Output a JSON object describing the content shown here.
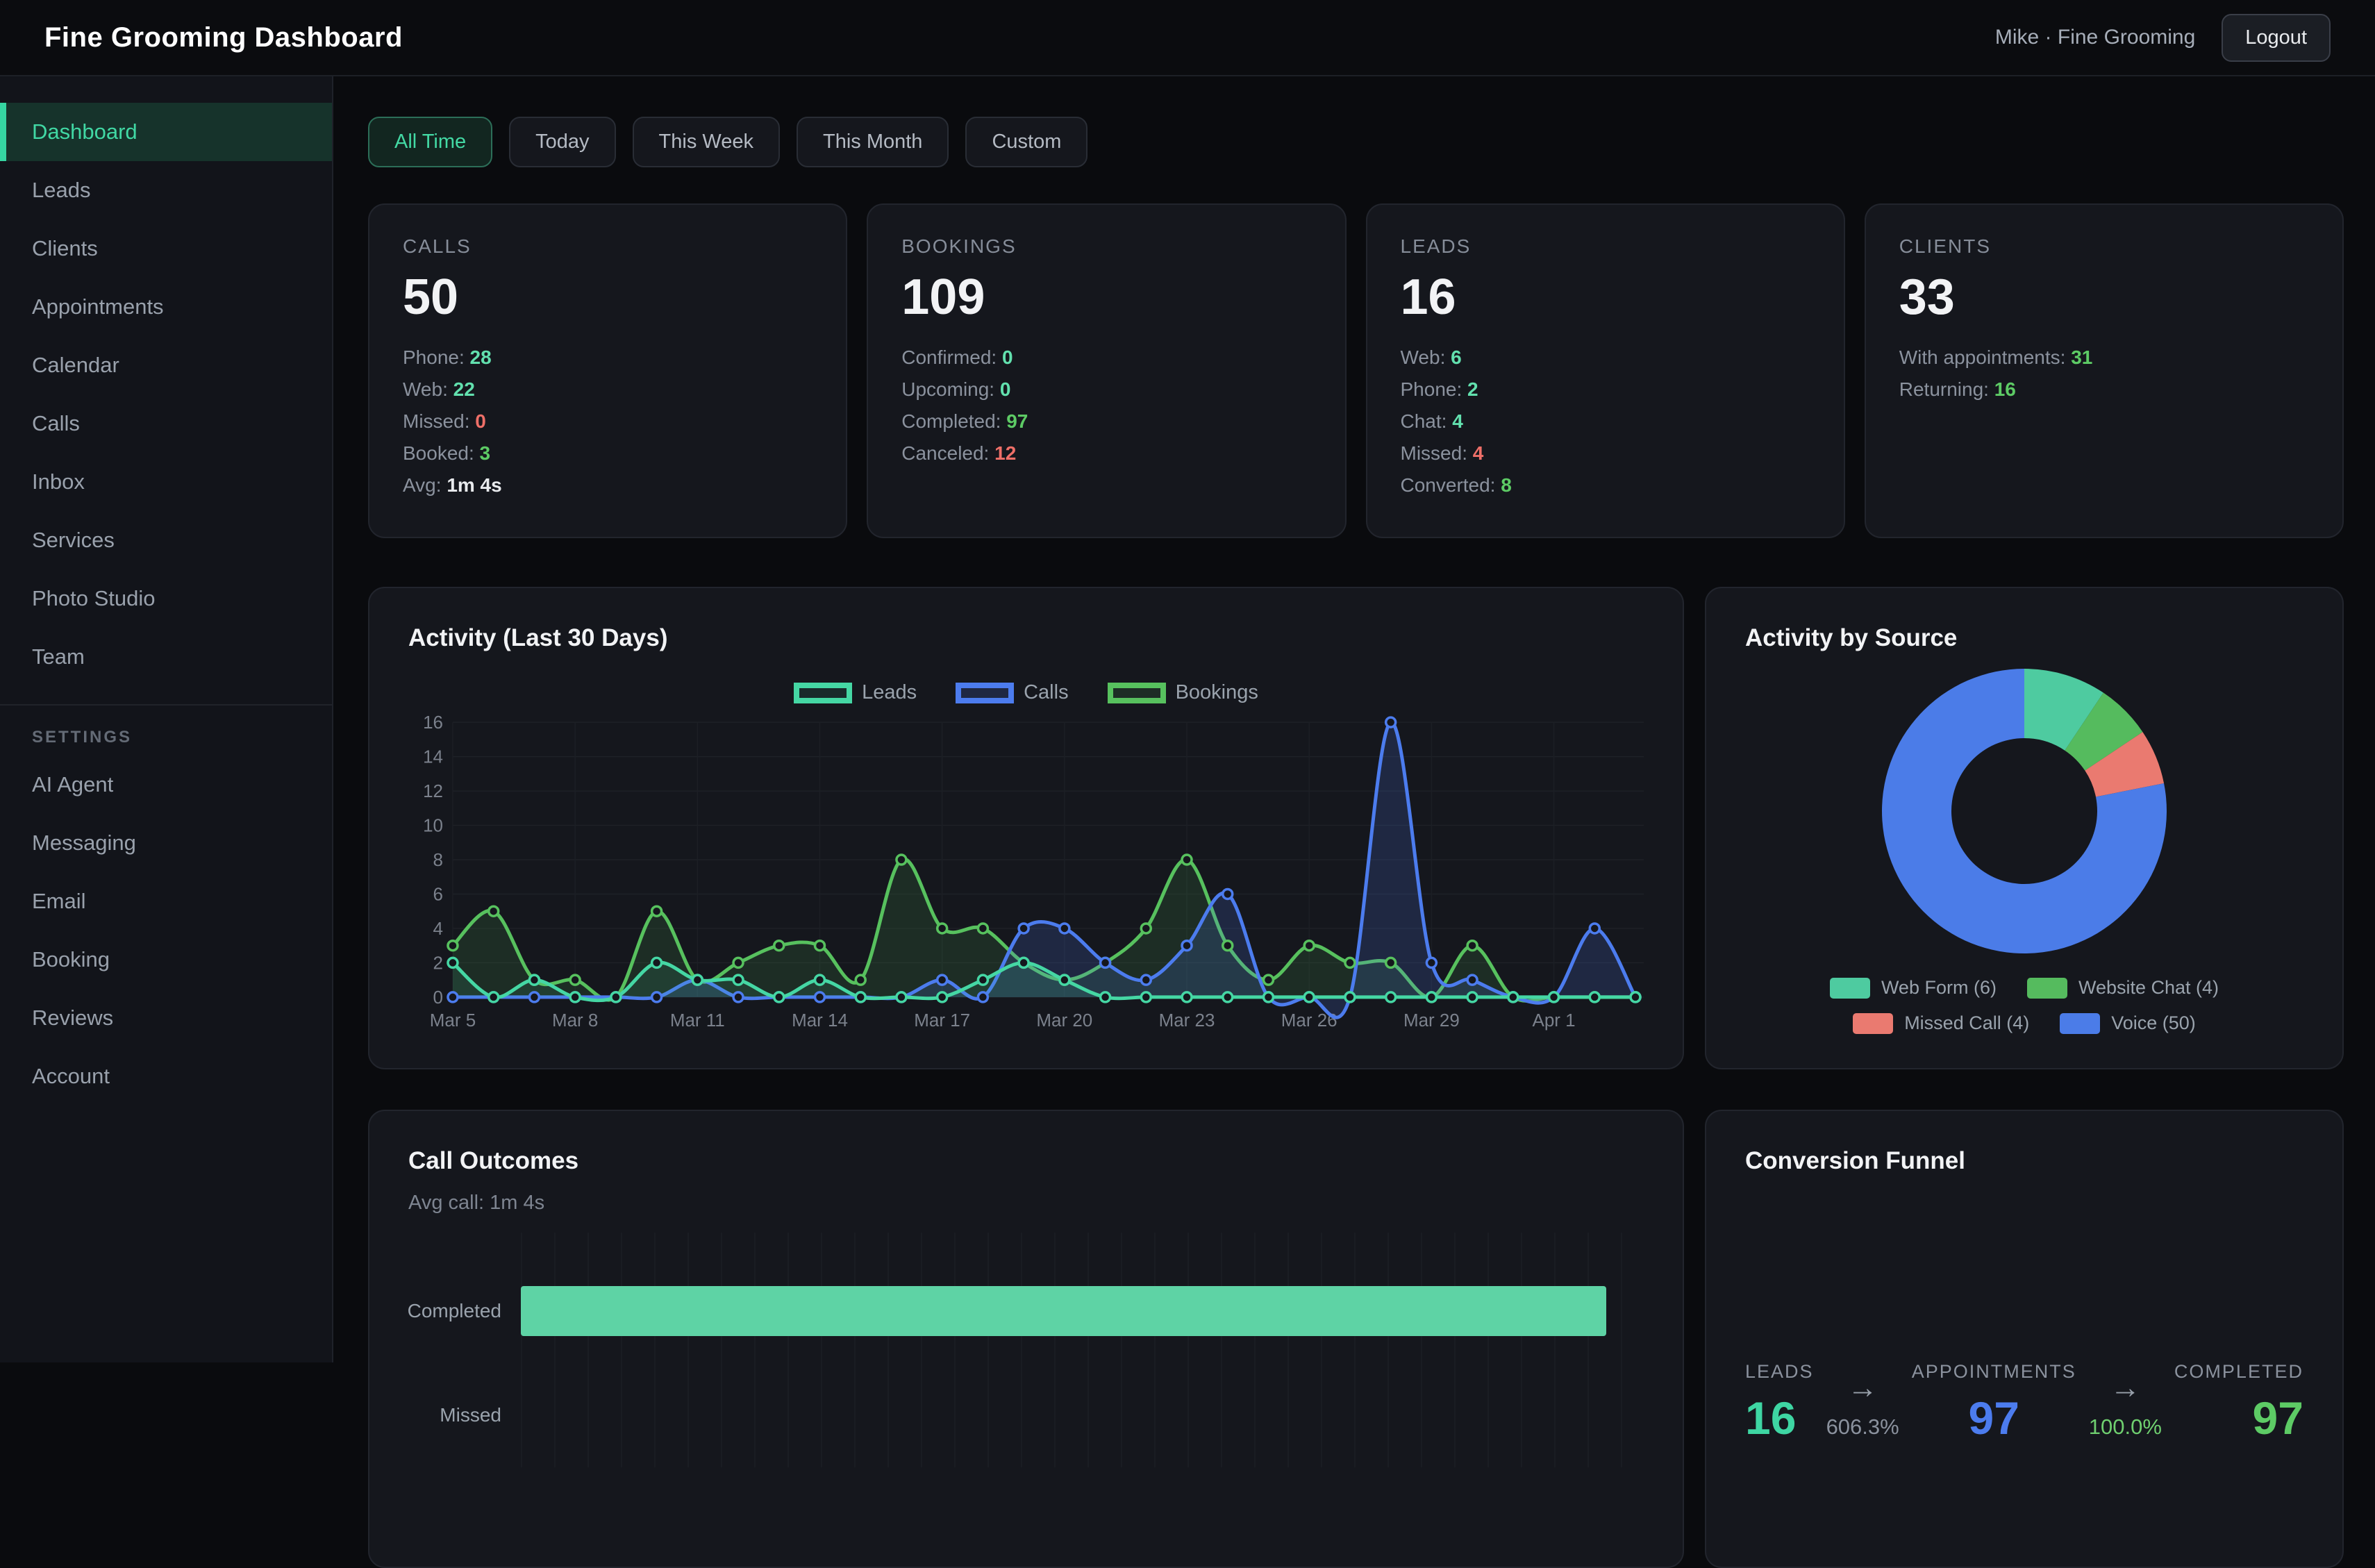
{
  "topbar": {
    "title": "Fine Grooming Dashboard",
    "user": "Mike · Fine Grooming",
    "logout_label": "Logout"
  },
  "sidebar": {
    "items": [
      "Dashboard",
      "Leads",
      "Clients",
      "Appointments",
      "Calendar",
      "Calls",
      "Inbox",
      "Services",
      "Photo Studio",
      "Team"
    ],
    "active_item": "Dashboard",
    "settings_header": "SETTINGS",
    "settings_items": [
      "AI Agent",
      "Messaging",
      "Email",
      "Booking",
      "Reviews",
      "Account"
    ]
  },
  "filters": {
    "options": [
      "All Time",
      "Today",
      "This Week",
      "This Month",
      "Custom"
    ],
    "active": "All Time"
  },
  "stat_cards": [
    {
      "label": "CALLS",
      "value": "50",
      "rows": [
        {
          "label": "Phone:",
          "value": "28",
          "color": "teal"
        },
        {
          "label": "Web:",
          "value": "22",
          "color": "teal"
        },
        {
          "label": "Missed:",
          "value": "0",
          "color": "red"
        },
        {
          "label": "Booked:",
          "value": "3",
          "color": "green"
        },
        {
          "label": "Avg:",
          "value": "1m 4s",
          "color": "white"
        }
      ]
    },
    {
      "label": "BOOKINGS",
      "value": "109",
      "rows": [
        {
          "label": "Confirmed:",
          "value": "0",
          "color": "teal"
        },
        {
          "label": "Upcoming:",
          "value": "0",
          "color": "teal"
        },
        {
          "label": "Completed:",
          "value": "97",
          "color": "green"
        },
        {
          "label": "Canceled:",
          "value": "12",
          "color": "red"
        }
      ]
    },
    {
      "label": "LEADS",
      "value": "16",
      "rows": [
        {
          "label": "Web:",
          "value": "6",
          "color": "teal"
        },
        {
          "label": "Phone:",
          "value": "2",
          "color": "teal"
        },
        {
          "label": "Chat:",
          "value": "4",
          "color": "teal"
        },
        {
          "label": "Missed:",
          "value": "4",
          "color": "red"
        },
        {
          "label": "Converted:",
          "value": "8",
          "color": "green"
        }
      ]
    },
    {
      "label": "CLIENTS",
      "value": "33",
      "rows": [
        {
          "label": "With appointments:",
          "value": "31",
          "color": "green"
        },
        {
          "label": "Returning:",
          "value": "16",
          "color": "green"
        }
      ]
    }
  ],
  "chart_data": [
    {
      "type": "line",
      "title": "Activity (Last 30 Days)",
      "x": [
        "Mar 5",
        "Mar 6",
        "Mar 7",
        "Mar 8",
        "Mar 9",
        "Mar 10",
        "Mar 11",
        "Mar 12",
        "Mar 13",
        "Mar 14",
        "Mar 15",
        "Mar 16",
        "Mar 17",
        "Mar 18",
        "Mar 19",
        "Mar 20",
        "Mar 21",
        "Mar 22",
        "Mar 23",
        "Mar 24",
        "Mar 25",
        "Mar 26",
        "Mar 27",
        "Mar 28",
        "Mar 29",
        "Mar 30",
        "Mar 31",
        "Apr 1",
        "Apr 2",
        "Apr 3"
      ],
      "tick_every": 3,
      "ylim": [
        0,
        16
      ],
      "y_ticks": [
        0,
        2,
        4,
        6,
        8,
        10,
        12,
        14,
        16
      ],
      "grid": true,
      "legend_position": "top",
      "series": [
        {
          "name": "Bookings",
          "color": "#57c15e",
          "fill": "rgba(87,193,94,0.13)",
          "values": [
            3,
            5,
            1,
            1,
            0,
            5,
            1,
            2,
            3,
            3,
            1,
            8,
            4,
            4,
            2,
            1,
            2,
            4,
            8,
            3,
            1,
            3,
            2,
            2,
            0,
            3,
            0,
            0,
            0,
            0
          ]
        },
        {
          "name": "Calls",
          "color": "#4c7cee",
          "fill": "rgba(76,124,238,0.18)",
          "values": [
            0,
            0,
            0,
            0,
            0,
            0,
            1,
            0,
            0,
            0,
            0,
            0,
            1,
            0,
            4,
            4,
            2,
            1,
            3,
            6,
            0,
            0,
            0,
            16,
            2,
            1,
            0,
            0,
            4,
            0
          ]
        },
        {
          "name": "Leads",
          "color": "#45d7a4",
          "fill": "rgba(69,215,164,0.10)",
          "values": [
            2,
            0,
            1,
            0,
            0,
            2,
            1,
            1,
            0,
            1,
            0,
            0,
            0,
            1,
            2,
            1,
            0,
            0,
            0,
            0,
            0,
            0,
            0,
            0,
            0,
            0,
            0,
            0,
            0,
            0
          ]
        }
      ],
      "legend_order": [
        "Leads",
        "Calls",
        "Bookings"
      ]
    },
    {
      "type": "pie",
      "title": "Activity by Source",
      "labels": [
        "Web Form",
        "Website Chat",
        "Missed Call",
        "Voice"
      ],
      "values": [
        6,
        4,
        4,
        50
      ],
      "legend": [
        "Web Form (6)",
        "Website Chat (4)",
        "Missed Call (4)",
        "Voice (50)"
      ],
      "colors": [
        "#4ecba0",
        "#55bb5e",
        "#ea7a70",
        "#4b7ce8"
      ],
      "donut": true,
      "legend_position": "bottom"
    },
    {
      "type": "bar",
      "title": "Call Outcomes",
      "subtitle": "Avg call: 1m 4s",
      "orientation": "horizontal",
      "categories": [
        "Completed",
        "Missed"
      ],
      "values": [
        50,
        0
      ],
      "xlim": [
        0,
        50
      ],
      "bar_color": "#5ed3a5",
      "grid": true
    }
  ],
  "funnel": {
    "title": "Conversion Funnel",
    "stages": [
      {
        "label": "LEADS",
        "value": "16",
        "color": "teal"
      },
      {
        "label": "APPOINTMENTS",
        "value": "97",
        "color": "blue"
      },
      {
        "label": "COMPLETED",
        "value": "97",
        "color": "green"
      }
    ],
    "arrows": [
      {
        "glyph": "→",
        "pct": "606.3%",
        "color": "gray"
      },
      {
        "glyph": "→",
        "pct": "100.0%",
        "color": "lgreen"
      }
    ]
  },
  "colors": {
    "accent_teal": "#45d7a4",
    "value_teal": "#62e0ae",
    "value_green": "#5dcb65",
    "value_red": "#ee6f68",
    "blue": "#4c7cee",
    "card_bg": "#15171d",
    "page_bg": "#0a0b0e",
    "muted_text": "#8b929e"
  }
}
